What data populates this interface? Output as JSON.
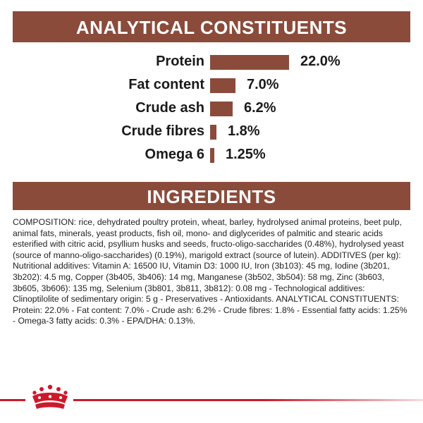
{
  "headers": {
    "constituents_title": "ANALYTICAL CONSTITUENTS",
    "ingredients_title": "INGREDIENTS"
  },
  "constituents": [
    {
      "label": "Protein",
      "value_text": "22.0%",
      "value": 22.0
    },
    {
      "label": "Fat content",
      "value_text": "7.0%",
      "value": 7.0
    },
    {
      "label": "Crude ash",
      "value_text": "6.2%",
      "value": 6.2
    },
    {
      "label": "Crude fibres",
      "value_text": "1.8%",
      "value": 1.8
    },
    {
      "label": "Omega 6",
      "value_text": "1.25%",
      "value": 1.25
    }
  ],
  "ingredients_text": "COMPOSITION: rice, dehydrated poultry protein, wheat, barley, hydrolysed animal proteins, beet pulp, animal fats, minerals, yeast products, fish oil, mono- and diglycerides of palmitic and stearic acids esterified with citric acid, psyllium husks and seeds, fructo-oligo-saccharides (0.48%), hydrolysed yeast (source of manno-oligo-saccharides) (0.19%), marigold extract (source of lutein). ADDITIVES (per kg): Nutritional additives: Vitamin A: 16500 IU, Vitamin D3: 1000 IU, Iron (3b103): 45 mg, Iodine (3b201, 3b202): 4.5 mg, Copper (3b405, 3b406): 14 mg, Manganese (3b502, 3b504): 58 mg, Zinc (3b603, 3b605, 3b606): 135 mg, Selenium (3b801, 3b811, 3b812): 0.08 mg - Technological additives: Clinoptilolite of sedimentary origin: 5 g - Preservatives - Antioxidants. ANALYTICAL CONSTITUENTS: Protein: 22.0% - Fat content: 7.0% - Crude ash: 6.2% - Crude fibres: 1.8% - Essential fatty acids: 1.25% - Omega-3 fatty acids: 0.3% - EPA/DHA: 0.13%.",
  "colors": {
    "banner": "#8b4b3b",
    "bar": "#8b4b3b",
    "footer_accent": "#cc1a2b"
  },
  "icons": {
    "logo": "royal-crown-icon"
  }
}
